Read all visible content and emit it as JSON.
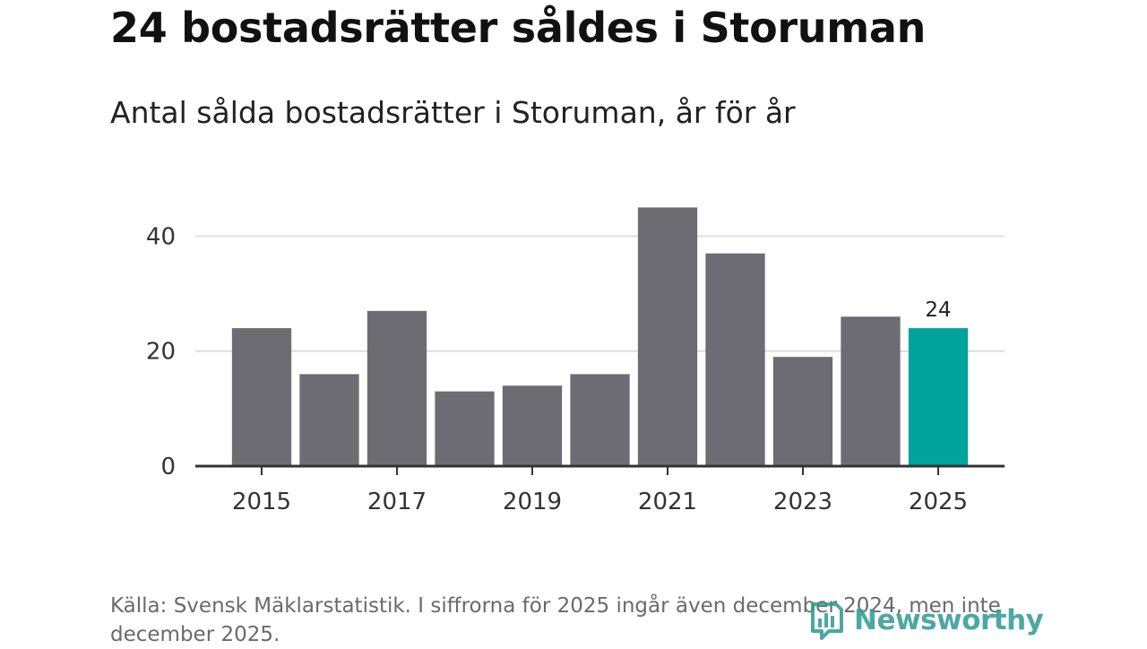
{
  "chart_data": {
    "type": "bar",
    "title": "24 bostadsrätter såldes i Storuman",
    "subtitle": "Antal sålda bostadsrätter i Storuman, år för år",
    "categories": [
      "2015",
      "2016",
      "2017",
      "2018",
      "2019",
      "2020",
      "2021",
      "2022",
      "2023",
      "2024",
      "2025"
    ],
    "values": [
      24,
      16,
      27,
      13,
      14,
      16,
      45,
      37,
      19,
      26,
      24
    ],
    "x_tick_labels": [
      "2015",
      "2017",
      "2019",
      "2021",
      "2023",
      "2025"
    ],
    "y_ticks": [
      0,
      20,
      40
    ],
    "ylim": [
      0,
      46
    ],
    "highlight": {
      "category": "2025",
      "label": "24"
    },
    "colors": {
      "bar": "#6d6c72",
      "highlight": "#00a39a",
      "grid": "#dddddd",
      "axis": "#333333"
    },
    "xlabel": "",
    "ylabel": ""
  },
  "source": "Källa: Svensk Mäklarstatistik. I siffrorna för 2025 ingår även december 2024, men inte december 2025.",
  "brand": {
    "name": "Newsworthy",
    "icon": "newsworthy-logo-icon",
    "color": "#2e9a94"
  }
}
